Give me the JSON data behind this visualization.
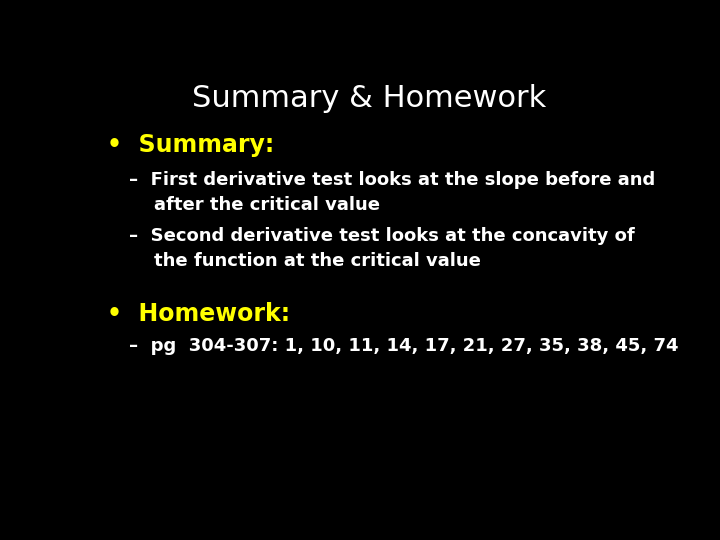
{
  "title": "Summary & Homework",
  "title_color": "#ffffff",
  "title_fontsize": 22,
  "background_color": "#000000",
  "bullet1_label": "•  Summary:",
  "bullet1_color": "#ffff00",
  "bullet1_fontsize": 17,
  "sub1_line1": "–  First derivative test looks at the slope before and",
  "sub1_line2": "    after the critical value",
  "sub1_color": "#ffffff",
  "sub1_fontsize": 13,
  "sub2_line1": "–  Second derivative test looks at the concavity of",
  "sub2_line2": "    the function at the critical value",
  "sub2_color": "#ffffff",
  "sub2_fontsize": 13,
  "bullet2_label": "•  Homework:",
  "bullet2_color": "#ffff00",
  "bullet2_fontsize": 17,
  "hw_line": "–  pg  304-307: 1, 10, 11, 14, 17, 21, 27, 35, 38, 45, 74",
  "hw_color": "#ffffff",
  "hw_fontsize": 13,
  "fontweight": "bold"
}
